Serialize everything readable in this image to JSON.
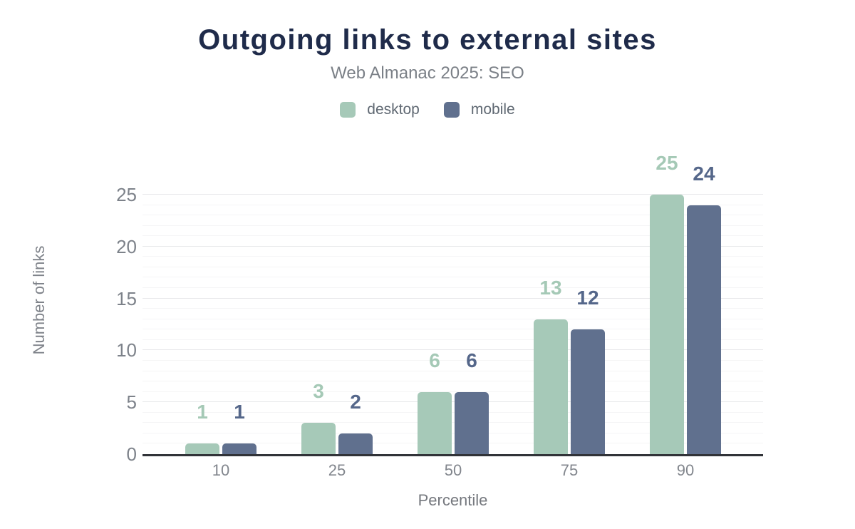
{
  "title": "Outgoing links to external sites",
  "subtitle": "Web Almanac 2025: SEO",
  "colors": {
    "title_text": "#1f2b4a",
    "subtitle_text": "#7b8087",
    "legend_text": "#5f6872",
    "axis_line": "#313338",
    "tick_text": "#7d828a",
    "gridline_minor": "#f5f5f6",
    "gridline_major": "#e7e8ea",
    "desktop": "#a6c9b8",
    "mobile": "#60708e",
    "desktop_label": "#a5c9b6",
    "mobile_label": "#55678a"
  },
  "chart_data": {
    "type": "bar",
    "title": "Outgoing links to external sites",
    "subtitle": "Web Almanac 2025: SEO",
    "categories": [
      "10",
      "25",
      "50",
      "75",
      "90"
    ],
    "series": [
      {
        "name": "desktop",
        "color": "#a6c9b8",
        "label_color": "#a5c9b6",
        "values": [
          1,
          3,
          6,
          13,
          25
        ]
      },
      {
        "name": "mobile",
        "color": "#60708e",
        "label_color": "#55678a",
        "values": [
          1,
          2,
          6,
          12,
          24
        ]
      }
    ],
    "xlabel": "Percentile",
    "ylabel": "Number of links",
    "ylim": [
      0,
      25
    ],
    "yticks": [
      0,
      5,
      10,
      15,
      20,
      25
    ],
    "grid": {
      "horizontal": true,
      "minor_step": 1,
      "major_step": 5,
      "vertical": false
    },
    "legend_position": "top-center",
    "value_labels": "above bars, colored per series"
  }
}
